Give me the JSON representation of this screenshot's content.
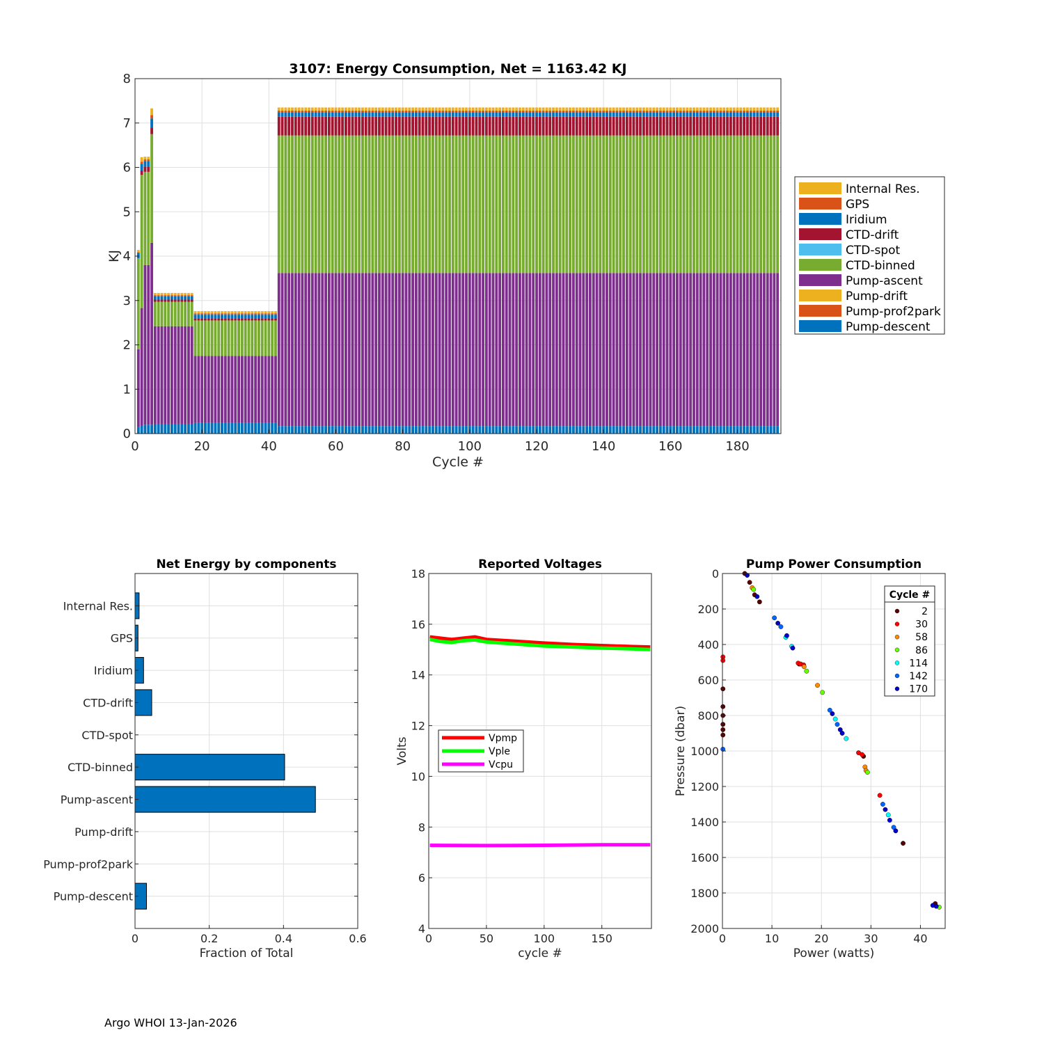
{
  "footer": "Argo WHOI 13-Jan-2026",
  "chart_data": [
    {
      "type": "bar",
      "stacked": true,
      "title": "3107: Energy Consumption,  Net = 1163.42 KJ",
      "xlabel": "Cycle #",
      "ylabel": "KJ",
      "xlim": [
        0,
        193
      ],
      "ylim": [
        0,
        8
      ],
      "xticks": [
        0,
        20,
        40,
        60,
        80,
        100,
        120,
        140,
        160,
        180
      ],
      "yticks": [
        0,
        1,
        2,
        3,
        4,
        5,
        6,
        7,
        8
      ],
      "grid": true,
      "legend_position": "right",
      "x_start": 1,
      "x_end": 192,
      "series": [
        {
          "name": "Internal Res.",
          "color": "#EDB120"
        },
        {
          "name": "GPS",
          "color": "#D95319"
        },
        {
          "name": "Iridium",
          "color": "#0072BD"
        },
        {
          "name": "CTD-drift",
          "color": "#A2142F"
        },
        {
          "name": "CTD-spot",
          "color": "#4DBEEE"
        },
        {
          "name": "CTD-binned",
          "color": "#77AC30"
        },
        {
          "name": "Pump-ascent",
          "color": "#7E2F8E"
        },
        {
          "name": "Pump-drift",
          "color": "#EDB120"
        },
        {
          "name": "Pump-prof2park",
          "color": "#D95319"
        },
        {
          "name": "Pump-descent",
          "color": "#0072BD"
        }
      ],
      "segments": [
        {
          "from": 1,
          "to": 1,
          "descent": 0.15,
          "ascent": 1.75,
          "binned": 2.05,
          "drift": 0.0,
          "iridium": 0.12,
          "gps": 0.02,
          "internal": 0.05
        },
        {
          "from": 2,
          "to": 2,
          "descent": 0.18,
          "ascent": 2.65,
          "binned": 3.0,
          "drift": 0.1,
          "iridium": 0.15,
          "gps": 0.05,
          "internal": 0.1
        },
        {
          "from": 3,
          "to": 4,
          "descent": 0.2,
          "ascent": 3.6,
          "binned": 2.1,
          "drift": 0.12,
          "iridium": 0.12,
          "gps": 0.04,
          "internal": 0.06
        },
        {
          "from": 5,
          "to": 5,
          "descent": 0.2,
          "ascent": 4.1,
          "binned": 2.45,
          "drift": 0.15,
          "iridium": 0.2,
          "gps": 0.08,
          "internal": 0.15
        },
        {
          "from": 6,
          "to": 17,
          "descent": 0.22,
          "ascent": 2.2,
          "binned": 0.55,
          "drift": 0.05,
          "iridium": 0.07,
          "gps": 0.03,
          "internal": 0.05
        },
        {
          "from": 18,
          "to": 42,
          "descent": 0.25,
          "ascent": 1.5,
          "binned": 0.8,
          "drift": 0.05,
          "iridium": 0.08,
          "gps": 0.03,
          "internal": 0.05
        },
        {
          "from": 43,
          "to": 192,
          "descent": 0.17,
          "ascent": 3.45,
          "binned": 3.1,
          "drift": 0.42,
          "iridium": 0.1,
          "gps": 0.04,
          "internal": 0.07
        }
      ]
    },
    {
      "type": "bar",
      "orientation": "horizontal",
      "title": "Net Energy by components",
      "xlabel": "Fraction of Total",
      "xlim": [
        0,
        0.6
      ],
      "xticks": [
        0,
        0.2,
        0.4,
        0.6
      ],
      "grid": true,
      "bar_color": "#0072BD",
      "categories": [
        "Internal Res.",
        "GPS",
        "Iridium",
        "CTD-drift",
        "CTD-spot",
        "CTD-binned",
        "Pump-ascent",
        "Pump-drift",
        "Pump-prof2park",
        "Pump-descent"
      ],
      "values": [
        0.011,
        0.008,
        0.023,
        0.045,
        0.0,
        0.403,
        0.486,
        0.0,
        0.0,
        0.031
      ]
    },
    {
      "type": "line",
      "title": "Reported Voltages",
      "xlabel": "cycle #",
      "ylabel": "Volts",
      "xlim": [
        0,
        193
      ],
      "ylim": [
        4,
        18
      ],
      "xticks": [
        0,
        50,
        100,
        150
      ],
      "yticks": [
        4,
        6,
        8,
        10,
        12,
        14,
        16,
        18
      ],
      "grid": true,
      "legend_position": "middle-left",
      "series": [
        {
          "name": "Vpmp",
          "color": "#FF0000",
          "x": [
            1,
            10,
            20,
            30,
            40,
            50,
            75,
            100,
            125,
            150,
            175,
            192
          ],
          "values": [
            15.5,
            15.45,
            15.4,
            15.45,
            15.5,
            15.4,
            15.33,
            15.26,
            15.2,
            15.16,
            15.12,
            15.1
          ]
        },
        {
          "name": "Vple",
          "color": "#00FF00",
          "x": [
            1,
            10,
            20,
            30,
            40,
            50,
            75,
            100,
            125,
            150,
            175,
            192
          ],
          "values": [
            15.4,
            15.32,
            15.28,
            15.35,
            15.38,
            15.3,
            15.22,
            15.14,
            15.1,
            15.06,
            15.03,
            15.0
          ]
        },
        {
          "name": "Vcpu",
          "color": "#FF00FF",
          "x": [
            1,
            50,
            100,
            150,
            192
          ],
          "values": [
            7.28,
            7.27,
            7.28,
            7.3,
            7.3
          ]
        }
      ]
    },
    {
      "type": "scatter",
      "title": "Pump Power Consumption",
      "xlabel": "Power (watts)",
      "ylabel": "Pressure (dbar)",
      "xlim": [
        0,
        45
      ],
      "ylim": [
        0,
        2000
      ],
      "y_reversed": true,
      "xticks": [
        0,
        10,
        20,
        30,
        40
      ],
      "yticks": [
        0,
        200,
        400,
        600,
        800,
        1000,
        1200,
        1400,
        1600,
        1800,
        2000
      ],
      "grid": true,
      "legend_title": "Cycle #",
      "legend_position": "top-right",
      "series": [
        {
          "name": "2",
          "color": "#5A0000",
          "points": [
            [
              0.1,
              650
            ],
            [
              0.1,
              750
            ],
            [
              0.1,
              800
            ],
            [
              0.1,
              850
            ],
            [
              0.1,
              880
            ],
            [
              0.1,
              910
            ],
            [
              4.5,
              0
            ],
            [
              5.5,
              50
            ],
            [
              6.5,
              120
            ],
            [
              7.5,
              160
            ],
            [
              15.5,
              510
            ],
            [
              28.5,
              1030
            ],
            [
              36.5,
              1520
            ],
            [
              43,
              1860
            ]
          ]
        },
        {
          "name": "30",
          "color": "#FF0000",
          "points": [
            [
              0.1,
              470
            ],
            [
              0.1,
              490
            ],
            [
              15.3,
              505
            ],
            [
              15.8,
              510
            ],
            [
              16.4,
              515
            ],
            [
              27.5,
              1010
            ],
            [
              28.2,
              1020
            ],
            [
              31.8,
              1250
            ]
          ]
        },
        {
          "name": "58",
          "color": "#FF8C00",
          "points": [
            [
              6.0,
              80
            ],
            [
              16.5,
              525
            ],
            [
              19.2,
              630
            ],
            [
              28.8,
              1090
            ],
            [
              29.0,
              1110
            ]
          ]
        },
        {
          "name": "86",
          "color": "#66FF00",
          "points": [
            [
              6.3,
              90
            ],
            [
              17.0,
              550
            ],
            [
              20.2,
              670
            ],
            [
              29.3,
              1120
            ],
            [
              43.8,
              1880
            ]
          ]
        },
        {
          "name": "114",
          "color": "#00FFFF",
          "points": [
            [
              12.8,
              360
            ],
            [
              14.0,
              410
            ],
            [
              22.8,
              820
            ],
            [
              25.0,
              930
            ],
            [
              33.5,
              1360
            ]
          ]
        },
        {
          "name": "142",
          "color": "#0066FF",
          "points": [
            [
              10.5,
              250
            ],
            [
              11.8,
              300
            ],
            [
              21.7,
              770
            ],
            [
              23.2,
              850
            ],
            [
              32.4,
              1300
            ],
            [
              34.6,
              1430
            ],
            [
              0.1,
              990
            ]
          ]
        },
        {
          "name": "170",
          "color": "#0000CC",
          "points": [
            [
              5.0,
              10
            ],
            [
              7.0,
              130
            ],
            [
              11.2,
              280
            ],
            [
              13.0,
              350
            ],
            [
              14.2,
              420
            ],
            [
              22.2,
              790
            ],
            [
              23.8,
              880
            ],
            [
              24.2,
              900
            ],
            [
              32.9,
              1330
            ],
            [
              33.8,
              1390
            ],
            [
              35.0,
              1450
            ],
            [
              42.5,
              1870
            ],
            [
              43.2,
              1875
            ]
          ]
        }
      ]
    }
  ]
}
